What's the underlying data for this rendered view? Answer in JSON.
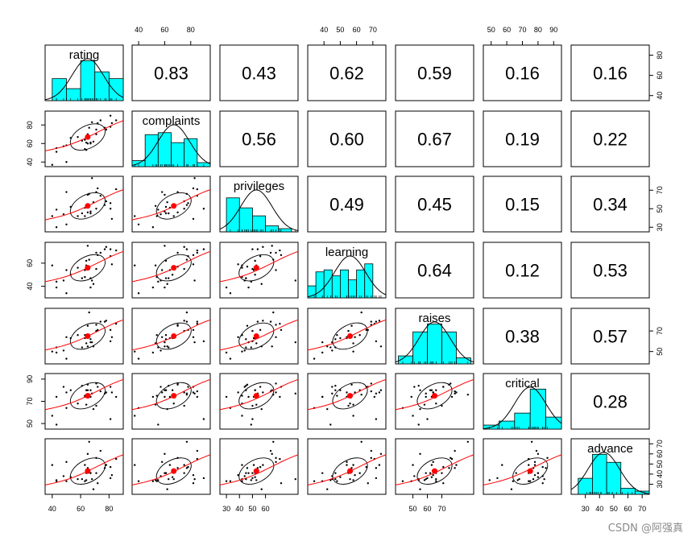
{
  "chart_data": {
    "type": "scatter-matrix",
    "title": "",
    "variables": [
      {
        "name": "rating",
        "label": "rating",
        "lim": [
          35,
          90
        ]
      },
      {
        "name": "complaints",
        "label": "complaints",
        "lim": [
          35,
          95
        ]
      },
      {
        "name": "privileges",
        "label": "privileges",
        "lim": [
          25,
          85
        ]
      },
      {
        "name": "learning",
        "label": "learning",
        "lim": [
          30,
          78
        ]
      },
      {
        "name": "raises",
        "label": "raises",
        "lim": [
          38,
          92
        ]
      },
      {
        "name": "critical",
        "label": "critical",
        "lim": [
          45,
          95
        ]
      },
      {
        "name": "advance",
        "label": "advance",
        "lim": [
          20,
          75
        ]
      }
    ],
    "correlations": [
      {
        "row": 1,
        "col": 2,
        "label": "0.83"
      },
      {
        "row": 1,
        "col": 3,
        "label": "0.43"
      },
      {
        "row": 1,
        "col": 4,
        "label": "0.62"
      },
      {
        "row": 1,
        "col": 5,
        "label": "0.59"
      },
      {
        "row": 1,
        "col": 6,
        "label": "0.16"
      },
      {
        "row": 1,
        "col": 7,
        "label": "0.16"
      },
      {
        "row": 2,
        "col": 3,
        "label": "0.56"
      },
      {
        "row": 2,
        "col": 4,
        "label": "0.60"
      },
      {
        "row": 2,
        "col": 5,
        "label": "0.67"
      },
      {
        "row": 2,
        "col": 6,
        "label": "0.19"
      },
      {
        "row": 2,
        "col": 7,
        "label": "0.22"
      },
      {
        "row": 3,
        "col": 4,
        "label": "0.49"
      },
      {
        "row": 3,
        "col": 5,
        "label": "0.45"
      },
      {
        "row": 3,
        "col": 6,
        "label": "0.15"
      },
      {
        "row": 3,
        "col": 7,
        "label": "0.34"
      },
      {
        "row": 4,
        "col": 5,
        "label": "0.64"
      },
      {
        "row": 4,
        "col": 6,
        "label": "0.12"
      },
      {
        "row": 4,
        "col": 7,
        "label": "0.53"
      },
      {
        "row": 5,
        "col": 6,
        "label": "0.38"
      },
      {
        "row": 5,
        "col": 7,
        "label": "0.57"
      },
      {
        "row": 6,
        "col": 7,
        "label": "0.28"
      }
    ],
    "histograms": [
      {
        "var": "rating",
        "breaks": [
          40,
          50,
          60,
          70,
          80,
          90
        ],
        "heights": [
          0.55,
          0.3,
          1.0,
          0.72,
          0.55
        ]
      },
      {
        "var": "complaints",
        "breaks": [
          35,
          45,
          55,
          65,
          75,
          85,
          95
        ],
        "heights": [
          0.15,
          0.8,
          0.85,
          0.6,
          0.7,
          0.1
        ]
      },
      {
        "var": "privileges",
        "breaks": [
          30,
          40,
          50,
          60,
          70,
          80
        ],
        "heights": [
          0.85,
          0.6,
          0.4,
          0.15,
          0.08
        ]
      },
      {
        "var": "learning",
        "breaks": [
          30,
          35,
          40,
          45,
          50,
          55,
          60,
          65,
          70,
          75
        ],
        "heights": [
          0.3,
          0.65,
          0.7,
          0.55,
          0.7,
          0.45,
          0.7,
          0.85,
          0.0
        ]
      },
      {
        "var": "raises",
        "breaks": [
          40,
          50,
          60,
          70,
          80,
          90
        ],
        "heights": [
          0.2,
          0.8,
          1.0,
          0.8,
          0.15
        ]
      },
      {
        "var": "critical",
        "breaks": [
          45,
          55,
          65,
          75,
          85,
          95
        ],
        "heights": [
          0.1,
          0.2,
          0.4,
          1.0,
          0.3
        ]
      },
      {
        "var": "advance",
        "breaks": [
          25,
          35,
          45,
          55,
          65,
          75
        ],
        "heights": [
          0.4,
          1.0,
          0.8,
          0.15,
          0.08
        ]
      }
    ],
    "panel_means": {
      "rating": 65,
      "complaints": 67,
      "privileges": 53,
      "learning": 56,
      "raises": 65,
      "critical": 75,
      "advance": 43
    },
    "points_seed": [
      [
        43,
        51,
        30,
        39,
        49,
        74,
        33
      ],
      [
        63,
        64,
        51,
        54,
        63,
        74,
        49
      ],
      [
        71,
        70,
        68,
        69,
        76,
        86,
        56
      ],
      [
        61,
        63,
        45,
        47,
        54,
        84,
        35
      ],
      [
        81,
        78,
        56,
        66,
        71,
        83,
        47
      ],
      [
        43,
        55,
        49,
        44,
        54,
        49,
        34
      ],
      [
        58,
        67,
        42,
        56,
        66,
        68,
        35
      ],
      [
        71,
        75,
        50,
        55,
        70,
        66,
        41
      ],
      [
        72,
        82,
        72,
        67,
        71,
        83,
        31
      ],
      [
        67,
        61,
        45,
        47,
        62,
        80,
        41
      ],
      [
        64,
        53,
        53,
        58,
        58,
        67,
        34
      ],
      [
        67,
        60,
        47,
        39,
        59,
        74,
        41
      ],
      [
        69,
        62,
        57,
        42,
        55,
        63,
        25
      ],
      [
        68,
        83,
        83,
        45,
        59,
        77,
        35
      ],
      [
        77,
        77,
        54,
        72,
        79,
        77,
        46
      ],
      [
        81,
        90,
        50,
        72,
        60,
        54,
        36
      ],
      [
        74,
        85,
        64,
        69,
        79,
        79,
        63
      ],
      [
        65,
        60,
        65,
        75,
        55,
        80,
        60
      ],
      [
        65,
        70,
        46,
        57,
        75,
        85,
        46
      ],
      [
        50,
        58,
        68,
        54,
        64,
        78,
        52
      ],
      [
        50,
        40,
        33,
        34,
        43,
        64,
        33
      ],
      [
        64,
        61,
        52,
        62,
        66,
        80,
        41
      ],
      [
        53,
        66,
        52,
        50,
        63,
        80,
        37
      ],
      [
        40,
        37,
        42,
        58,
        50,
        57,
        49
      ],
      [
        63,
        54,
        42,
        48,
        66,
        75,
        33
      ],
      [
        66,
        77,
        66,
        63,
        88,
        76,
        72
      ],
      [
        78,
        75,
        58,
        74,
        80,
        78,
        49
      ],
      [
        48,
        57,
        44,
        45,
        51,
        83,
        38
      ],
      [
        85,
        85,
        71,
        71,
        77,
        74,
        55
      ],
      [
        82,
        82,
        39,
        59,
        64,
        78,
        39
      ]
    ],
    "top_axis_ticks": {
      "complaints": [
        "40",
        "60",
        "80"
      ],
      "learning": [
        "40",
        "50",
        "60",
        "70"
      ],
      "critical": [
        "50",
        "60",
        "70",
        "80",
        "90"
      ]
    },
    "bottom_axis_ticks": {
      "rating": [
        "40",
        "60",
        "80"
      ],
      "privileges": [
        "30",
        "40",
        "50",
        "60"
      ],
      "raises": [
        "50",
        "60",
        "70"
      ],
      "advance": [
        "30",
        "40",
        "50",
        "60",
        "70"
      ]
    },
    "left_axis_ticks": {
      "complaints": [
        "40",
        "60",
        "80"
      ],
      "learning": [
        "40",
        "60"
      ],
      "critical": [
        "50",
        "70",
        "90"
      ]
    },
    "right_axis_ticks": {
      "rating": [
        "40",
        "60",
        "80"
      ],
      "privileges": [
        "30",
        "50",
        "70"
      ],
      "raises": [
        "50",
        "70"
      ],
      "advance": [
        "30",
        "40",
        "50",
        "60",
        "70"
      ]
    },
    "colors": {
      "hist": "#00ffff",
      "loess": "#ff0000",
      "mean": "#ff0000",
      "frame": "#000000"
    }
  },
  "watermark": "CSDN @阿强真"
}
